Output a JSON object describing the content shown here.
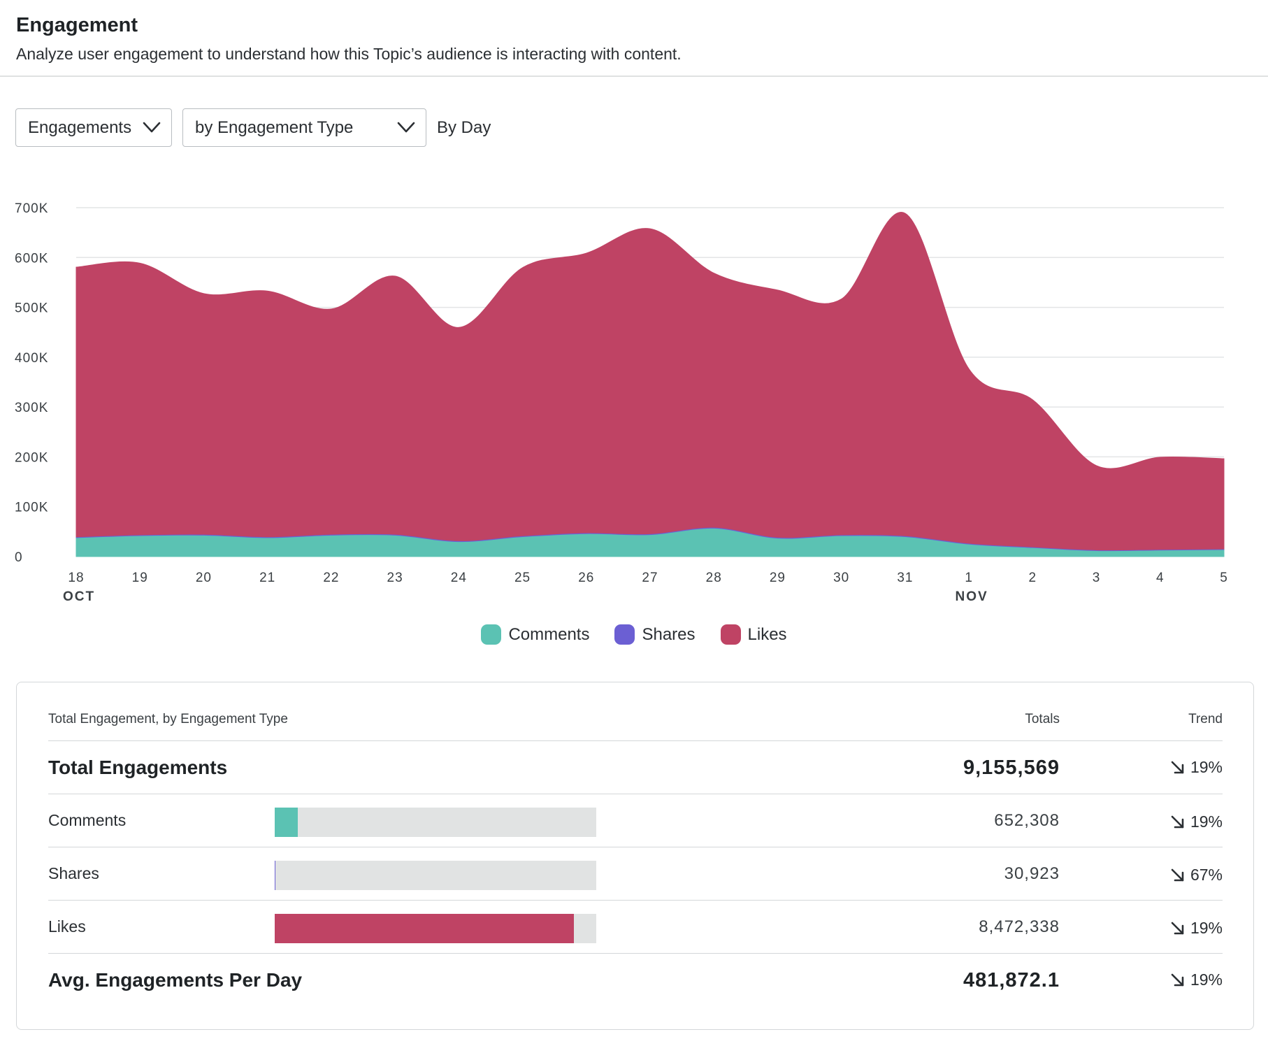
{
  "header": {
    "title": "Engagement",
    "subtitle": "Analyze user engagement to understand how this Topic’s audience is interacting with content."
  },
  "controls": {
    "metric_select": "Engagements",
    "group_select": "by Engagement Type",
    "interval": "By Day"
  },
  "colors": {
    "comments": "#5bc2b3",
    "shares": "#6b5fd3",
    "likes": "#bf4364",
    "grid": "#e3e5e6",
    "track": "#e1e3e3"
  },
  "chart_data": {
    "type": "area",
    "stacked": true,
    "ylim": [
      0,
      700000
    ],
    "y_ticks": [
      0,
      100000,
      200000,
      300000,
      400000,
      500000,
      600000,
      700000
    ],
    "y_tick_labels": [
      "0",
      "100K",
      "200K",
      "300K",
      "400K",
      "500K",
      "600K",
      "700K"
    ],
    "x": [
      "18",
      "19",
      "20",
      "21",
      "22",
      "23",
      "24",
      "25",
      "26",
      "27",
      "28",
      "29",
      "30",
      "31",
      "1",
      "2",
      "3",
      "4",
      "5"
    ],
    "month_labels": [
      {
        "index": 0,
        "label": "OCT"
      },
      {
        "index": 14,
        "label": "NOV"
      }
    ],
    "legend_position": "bottom-center",
    "series": [
      {
        "name": "Comments",
        "color": "#5bc2b3",
        "values": [
          38000,
          42000,
          43000,
          38000,
          43000,
          43000,
          30000,
          40000,
          46000,
          44000,
          57000,
          37000,
          42000,
          40000,
          25000,
          18000,
          12000,
          13000,
          14000
        ]
      },
      {
        "name": "Shares",
        "color": "#6b5fd3",
        "values": [
          1700,
          1700,
          1700,
          1700,
          1700,
          1700,
          1700,
          1700,
          1700,
          1700,
          1700,
          1700,
          1700,
          1700,
          1600,
          1500,
          1400,
          1400,
          1400
        ]
      },
      {
        "name": "Likes",
        "color": "#bf4364",
        "values": [
          541000,
          545000,
          483000,
          493000,
          452000,
          518000,
          428000,
          538000,
          561000,
          612000,
          510000,
          496000,
          473000,
          647000,
          350000,
          295000,
          169000,
          185000,
          181000
        ]
      }
    ]
  },
  "legend": [
    {
      "name": "Comments",
      "color": "#5bc2b3"
    },
    {
      "name": "Shares",
      "color": "#6b5fd3"
    },
    {
      "name": "Likes",
      "color": "#bf4364"
    }
  ],
  "table": {
    "heading": "Total Engagement, by Engagement Type",
    "col_totals": "Totals",
    "col_trend": "Trend",
    "rows": [
      {
        "label": "Total Engagements",
        "total": "9,155,569",
        "trend": "19%",
        "trend_direction": "down"
      },
      {
        "label": "Comments",
        "total": "652,308",
        "trend": "19%",
        "trend_direction": "down",
        "share": 0.071,
        "color": "#5bc2b3"
      },
      {
        "label": "Shares",
        "total": "30,923",
        "trend": "67%",
        "trend_direction": "down",
        "share": 0.003,
        "color": "#6b5fd3"
      },
      {
        "label": "Likes",
        "total": "8,472,338",
        "trend": "19%",
        "trend_direction": "down",
        "share": 0.93,
        "color": "#bf4364"
      },
      {
        "label": "Avg. Engagements Per Day",
        "total": "481,872.1",
        "trend": "19%",
        "trend_direction": "down"
      }
    ]
  }
}
